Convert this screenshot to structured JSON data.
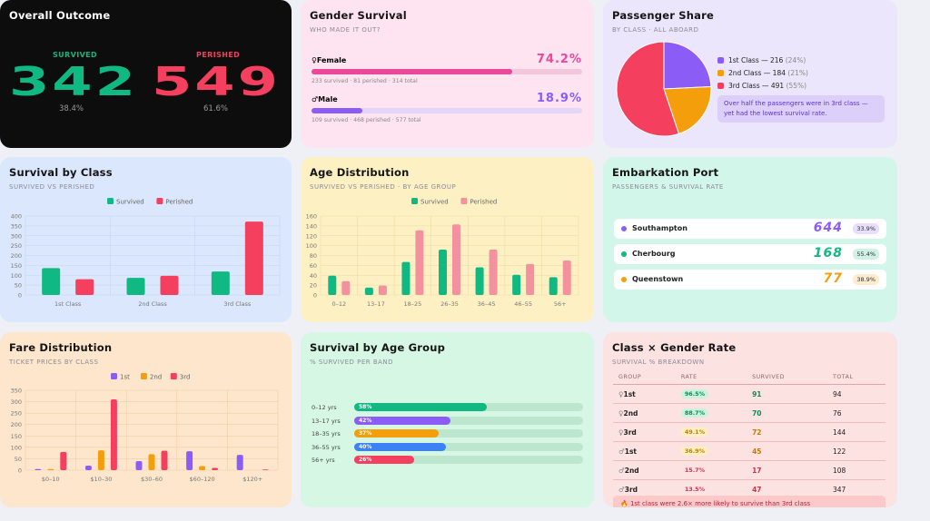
{
  "outcome": {
    "title": "Overall Outcome",
    "survived_label": "SURVIVED",
    "survived_value": "342",
    "survived_pct": "38.4%",
    "perished_label": "PERISHED",
    "perished_value": "549",
    "perished_pct": "61.6%"
  },
  "gender": {
    "title": "Gender Survival",
    "subtitle": "WHO MADE IT OUT?",
    "female": {
      "label": "Female",
      "icon": "female-icon",
      "pct": "74.2%",
      "rate": 74.2,
      "note": "233 survived · 81 perished · 314 total"
    },
    "male": {
      "label": "Male",
      "icon": "male-icon",
      "pct": "18.9%",
      "rate": 18.9,
      "note": "109 survived · 468 perished · 577 total"
    }
  },
  "share": {
    "title": "Passenger Share",
    "subtitle": "BY CLASS · ALL ABOARD",
    "items": [
      {
        "label": "1st Class — 216",
        "pct": "(24%)",
        "value": 216,
        "color": "#8b5cf6"
      },
      {
        "label": "2nd Class — 184",
        "pct": "(21%)",
        "value": 184,
        "color": "#f59e0b"
      },
      {
        "label": "3rd Class — 491",
        "pct": "(55%)",
        "value": 491,
        "color": "#f43f5e"
      }
    ],
    "note": "Over half the passengers were in 3rd class — yet had the lowest survival rate."
  },
  "survival_class": {
    "title": "Survival by Class",
    "subtitle": "SURVIVED VS PERISHED",
    "legend": [
      "Survived",
      "Perished"
    ]
  },
  "age_dist": {
    "title": "Age Distribution",
    "subtitle": "SURVIVED VS PERISHED · BY AGE GROUP",
    "legend": [
      "Survived",
      "Perished"
    ]
  },
  "embark": {
    "title": "Embarkation Port",
    "subtitle": "PASSENGERS & SURVIVAL RATE",
    "ports": [
      {
        "name": "Southampton",
        "count": "644",
        "rate": "33.9%",
        "color": "#8b5cf6"
      },
      {
        "name": "Cherbourg",
        "count": "168",
        "rate": "55.4%",
        "color": "#10b981"
      },
      {
        "name": "Queenstown",
        "count": "77",
        "rate": "38.9%",
        "color": "#f59e0b"
      }
    ]
  },
  "fare": {
    "title": "Fare Distribution",
    "subtitle": "TICKET PRICES BY CLASS",
    "legend": [
      "1st",
      "2nd",
      "3rd"
    ]
  },
  "age_group": {
    "title": "Survival by Age Group",
    "subtitle": "% SURVIVED PER BAND",
    "bands": [
      {
        "label": "0–12 yrs",
        "pct": "58%",
        "value": 58,
        "color": "#10b981"
      },
      {
        "label": "13–17 yrs",
        "pct": "42%",
        "value": 42,
        "color": "#8b5cf6"
      },
      {
        "label": "18–35 yrs",
        "pct": "37%",
        "value": 37,
        "color": "#f59e0b"
      },
      {
        "label": "36–55 yrs",
        "pct": "40%",
        "value": 40,
        "color": "#3b82f6"
      },
      {
        "label": "56+ yrs",
        "pct": "26%",
        "value": 26,
        "color": "#f43f5e"
      }
    ]
  },
  "class_gender": {
    "title": "Class × Gender Rate",
    "subtitle": "SURVIVAL % BREAKDOWN",
    "headers": [
      "GROUP",
      "RATE",
      "SURVIVED",
      "TOTAL"
    ],
    "rows": [
      {
        "sym": "♀",
        "group": "1st",
        "rate": "96.5%",
        "survived": "91",
        "total": "94",
        "tone": "green"
      },
      {
        "sym": "♀",
        "group": "2nd",
        "rate": "88.7%",
        "survived": "70",
        "total": "76",
        "tone": "green"
      },
      {
        "sym": "♀",
        "group": "3rd",
        "rate": "49.1%",
        "survived": "72",
        "total": "144",
        "tone": "amber"
      },
      {
        "sym": "♂",
        "group": "1st",
        "rate": "36.9%",
        "survived": "45",
        "total": "122",
        "tone": "amber"
      },
      {
        "sym": "♂",
        "group": "2nd",
        "rate": "15.7%",
        "survived": "17",
        "total": "108",
        "tone": "red"
      },
      {
        "sym": "♂",
        "group": "3rd",
        "rate": "13.5%",
        "survived": "47",
        "total": "347",
        "tone": "red"
      }
    ],
    "footnote": "1st class were 2.6× more likely to survive than 3rd class"
  },
  "chart_data": [
    {
      "type": "bar",
      "title": "Survival by Class",
      "categories": [
        "1st Class",
        "2nd Class",
        "3rd Class"
      ],
      "series": [
        {
          "name": "Survived",
          "values": [
            136,
            87,
            119
          ],
          "color": "#10b981"
        },
        {
          "name": "Perished",
          "values": [
            80,
            97,
            372
          ],
          "color": "#f43f5e"
        }
      ],
      "ylim": [
        0,
        400
      ],
      "yticks": [
        0,
        50,
        100,
        150,
        200,
        250,
        300,
        350,
        400
      ],
      "grid": true,
      "legend": "top-center"
    },
    {
      "type": "bar",
      "title": "Age Distribution",
      "categories": [
        "0–12",
        "13–17",
        "18–25",
        "26–35",
        "36–45",
        "46–55",
        "56+"
      ],
      "series": [
        {
          "name": "Survived",
          "values": [
            39,
            15,
            67,
            92,
            56,
            41,
            36
          ],
          "color": "#10b981"
        },
        {
          "name": "Perished",
          "values": [
            28,
            19,
            131,
            143,
            92,
            63,
            70
          ],
          "color": "#f3919f"
        }
      ],
      "ylim": [
        0,
        160
      ],
      "yticks": [
        0,
        20,
        40,
        60,
        80,
        100,
        120,
        140,
        160
      ],
      "grid": true,
      "legend": "top-center"
    },
    {
      "type": "bar",
      "title": "Fare Distribution",
      "categories": [
        "$0–10",
        "$10–30",
        "$30–60",
        "$60–120",
        "$120+"
      ],
      "series": [
        {
          "name": "1st",
          "values": [
            5,
            20,
            40,
            83,
            67
          ],
          "color": "#8b5cf6"
        },
        {
          "name": "2nd",
          "values": [
            5,
            87,
            70,
            18,
            0
          ],
          "color": "#f59e0b"
        },
        {
          "name": "3rd",
          "values": [
            80,
            310,
            85,
            10,
            3
          ],
          "color": "#f43f5e"
        }
      ],
      "ylim": [
        0,
        350
      ],
      "yticks": [
        0,
        50,
        100,
        150,
        200,
        250,
        300,
        350
      ],
      "grid": true,
      "legend": "top-center"
    },
    {
      "type": "pie",
      "title": "Passenger Share",
      "categories": [
        "1st Class",
        "2nd Class",
        "3rd Class"
      ],
      "values": [
        216,
        184,
        491
      ]
    }
  ]
}
